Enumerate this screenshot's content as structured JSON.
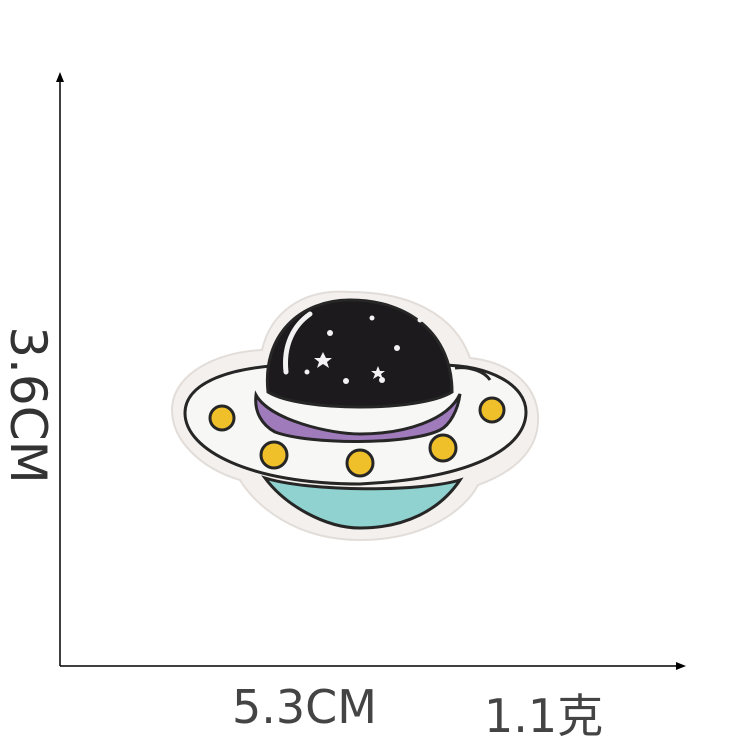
{
  "dimensions": {
    "height_label": "3.6CM",
    "width_label": "5.3CM",
    "weight_label": "1.1克"
  },
  "product": {
    "image_name": "ufo-embroidered-patch"
  },
  "colors": {
    "axis": "#000000",
    "patch_border": "#f4f0ee",
    "dome": "#1c1a1c",
    "band": "#a07bbc",
    "saucer": "#f7f7f5",
    "lights": "#f0c02a",
    "base": "#8fd2cf",
    "outline": "#262626",
    "label_text": "#444444"
  }
}
